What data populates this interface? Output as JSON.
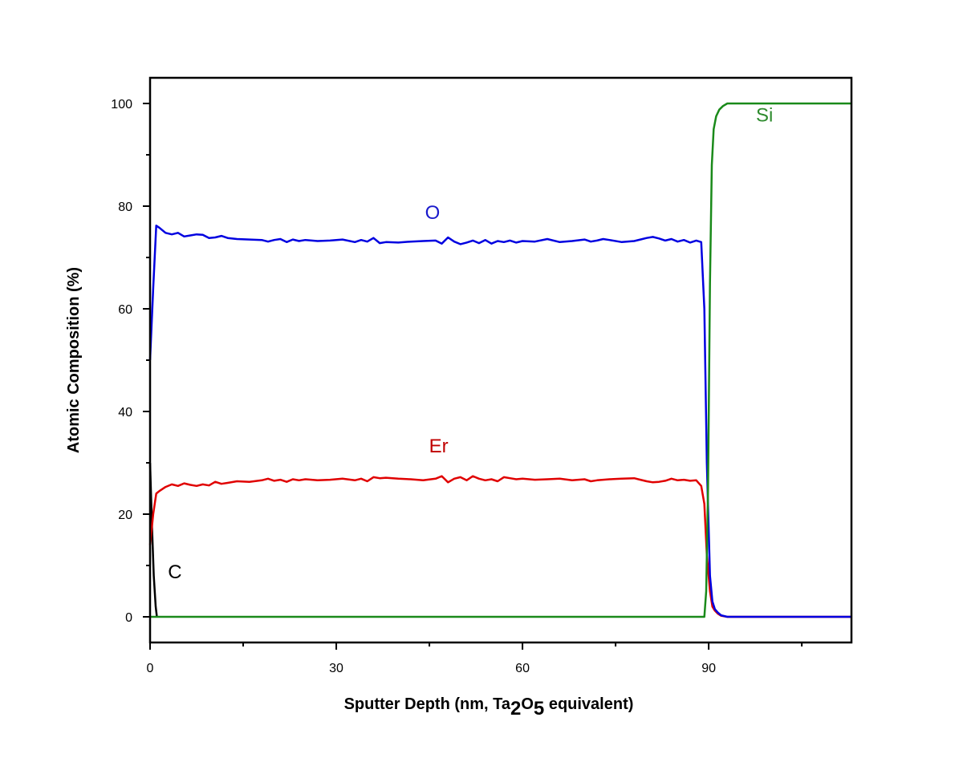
{
  "chart_data": {
    "type": "line",
    "title": "",
    "xlabel": {
      "before": "Sputter Depth (nm, Ta",
      "sub1": "2",
      "mid": "O",
      "sub2": "5",
      "after": " equivalent)"
    },
    "ylabel": "Atomic Composition (%)",
    "xlim": [
      0,
      113
    ],
    "ylim": [
      -5,
      105
    ],
    "x_ticks": [
      0,
      30,
      60,
      90
    ],
    "x_minor_ticks": [
      15,
      45,
      75,
      105
    ],
    "y_ticks": [
      0,
      20,
      40,
      60,
      80,
      100
    ],
    "y_minor_ticks": [
      10,
      30,
      50,
      70,
      90
    ],
    "grid": false,
    "legend": "inline labels",
    "series": [
      {
        "name": "C",
        "color": "#000000",
        "label_pos": [
          4,
          7.5
        ],
        "x": [
          0,
          0.3,
          0.6,
          0.9,
          1.1
        ],
        "y": [
          30,
          18,
          8,
          2,
          0
        ]
      },
      {
        "name": "Er",
        "color": "#e00000",
        "label_color": "#c00000",
        "label_pos": [
          46.5,
          32
        ],
        "x": [
          0,
          0.5,
          1,
          1.5,
          2.5,
          3.5,
          4.5,
          5.5,
          6.5,
          7.5,
          8.5,
          9.5,
          10.5,
          11.5,
          12.5,
          14,
          16,
          18,
          19,
          20,
          21,
          22,
          23,
          24,
          25,
          27,
          29,
          31,
          33,
          34,
          35,
          36,
          37,
          38,
          40,
          42,
          44,
          46,
          47,
          48,
          49,
          50,
          51,
          52,
          53,
          54,
          55,
          56,
          57,
          58,
          59,
          60,
          62,
          64,
          66,
          68,
          70,
          71,
          72,
          73,
          74,
          76,
          78,
          79,
          80,
          81,
          82,
          83,
          84,
          85,
          86,
          87,
          88,
          88.8,
          89.3,
          89.7,
          90.2,
          90.6,
          91,
          91.5,
          92,
          93,
          94,
          100,
          113
        ],
        "y": [
          14,
          20,
          24,
          24.5,
          25.3,
          25.8,
          25.5,
          26,
          25.7,
          25.5,
          25.8,
          25.6,
          26.3,
          25.9,
          26.1,
          26.4,
          26.3,
          26.6,
          26.9,
          26.5,
          26.7,
          26.3,
          26.8,
          26.6,
          26.8,
          26.6,
          26.7,
          26.9,
          26.6,
          26.9,
          26.4,
          27.2,
          27.0,
          27.1,
          26.9,
          26.8,
          26.6,
          26.9,
          27.4,
          26.2,
          26.9,
          27.2,
          26.6,
          27.4,
          26.9,
          26.6,
          26.8,
          26.4,
          27.2,
          27.0,
          26.8,
          26.9,
          26.7,
          26.8,
          26.9,
          26.6,
          26.8,
          26.4,
          26.6,
          26.7,
          26.8,
          26.9,
          27.0,
          26.7,
          26.4,
          26.2,
          26.3,
          26.5,
          26.9,
          26.6,
          26.7,
          26.5,
          26.6,
          25.5,
          22,
          12,
          5,
          2,
          1.2,
          0.6,
          0.2,
          0,
          0,
          0,
          0
        ]
      },
      {
        "name": "O",
        "color": "#0000e0",
        "label_color": "#1a1acc",
        "label_pos": [
          45.5,
          77.5
        ],
        "x": [
          0,
          0.5,
          1,
          1.5,
          2.5,
          3.5,
          4.5,
          5.5,
          6.5,
          7.5,
          8.5,
          9.5,
          10.5,
          11.5,
          12.5,
          14,
          16,
          18,
          19,
          20,
          21,
          22,
          23,
          24,
          25,
          27,
          29,
          31,
          33,
          34,
          35,
          36,
          37,
          38,
          40,
          42,
          44,
          46,
          47,
          48,
          49,
          50,
          51,
          52,
          53,
          54,
          55,
          56,
          57,
          58,
          59,
          60,
          62,
          64,
          66,
          68,
          70,
          71,
          72,
          73,
          74,
          76,
          78,
          79,
          80,
          81,
          82,
          83,
          84,
          85,
          86,
          87,
          88,
          88.8,
          89.3,
          89.7,
          90.2,
          90.6,
          91,
          91.5,
          92,
          93,
          94,
          100,
          113
        ],
        "y": [
          50,
          64,
          76.2,
          75.8,
          74.8,
          74.5,
          74.8,
          74.1,
          74.3,
          74.5,
          74.4,
          73.8,
          73.9,
          74.2,
          73.8,
          73.6,
          73.5,
          73.4,
          73.1,
          73.4,
          73.6,
          73.0,
          73.5,
          73.2,
          73.4,
          73.2,
          73.3,
          73.5,
          73.0,
          73.4,
          73.1,
          73.8,
          72.8,
          73.0,
          72.9,
          73.1,
          73.2,
          73.3,
          72.7,
          73.9,
          73.1,
          72.6,
          72.9,
          73.3,
          72.8,
          73.4,
          72.7,
          73.2,
          73.0,
          73.3,
          72.9,
          73.2,
          73.1,
          73.6,
          73.0,
          73.2,
          73.5,
          73.1,
          73.3,
          73.6,
          73.4,
          73.0,
          73.2,
          73.5,
          73.8,
          74.0,
          73.7,
          73.3,
          73.6,
          73.1,
          73.4,
          72.9,
          73.3,
          73.0,
          60,
          30,
          8,
          3,
          1.5,
          0.8,
          0.3,
          0,
          0,
          0,
          0
        ]
      },
      {
        "name": "Si",
        "color": "#1a8a1a",
        "label_color": "#2e8b2e",
        "label_pos": [
          99,
          96.5
        ],
        "x": [
          0,
          89.3,
          89.6,
          89.9,
          90.2,
          90.5,
          90.8,
          91.2,
          91.7,
          92.3,
          93,
          94,
          100,
          113
        ],
        "y": [
          0,
          0,
          5,
          25,
          65,
          88,
          95,
          97.5,
          98.8,
          99.5,
          100,
          100,
          100,
          100
        ]
      }
    ]
  }
}
